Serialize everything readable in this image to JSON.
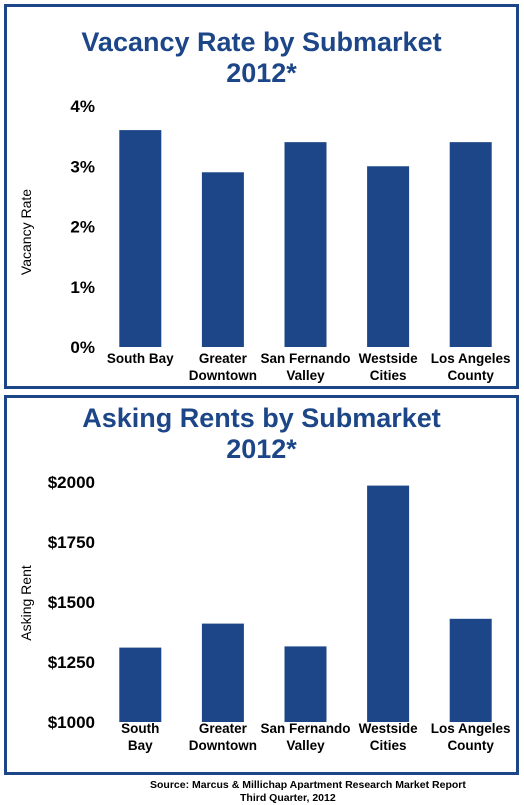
{
  "chart_data": [
    {
      "type": "bar",
      "title": "Vacancy Rate by Submarket",
      "subtitle": "2012*",
      "ylabel": "Vacancy Rate",
      "ylim": [
        0,
        4
      ],
      "yticks": [
        "0%",
        "1%",
        "2%",
        "3%",
        "4%"
      ],
      "categories": [
        [
          "South Bay"
        ],
        [
          "Greater",
          "Downtown"
        ],
        [
          "San Fernando",
          "Valley"
        ],
        [
          "Westside",
          "Cities"
        ],
        [
          "Los Angeles",
          "County"
        ]
      ],
      "values": [
        3.6,
        2.9,
        3.4,
        3.0,
        3.4
      ],
      "bar_color": "#1c4687",
      "grid": false
    },
    {
      "type": "bar",
      "title": "Asking Rents by Submarket",
      "subtitle": "2012*",
      "ylabel": "Asking Rent",
      "ylim": [
        1000,
        2000
      ],
      "yticks": [
        "$1000",
        "$1250",
        "$1500",
        "$1750",
        "$2000"
      ],
      "categories": [
        [
          "South",
          "Bay"
        ],
        [
          "Greater",
          "Downtown"
        ],
        [
          "San Fernando",
          "Valley"
        ],
        [
          "Westside",
          "Cities"
        ],
        [
          "Los Angeles",
          "County"
        ]
      ],
      "values": [
        1310,
        1410,
        1315,
        1985,
        1430
      ],
      "bar_color": "#1c4687",
      "grid": false
    }
  ],
  "source": {
    "line1": "Source: Marcus & Millichap Apartment Research Market Report",
    "line2": "Third Quarter, 2012"
  }
}
